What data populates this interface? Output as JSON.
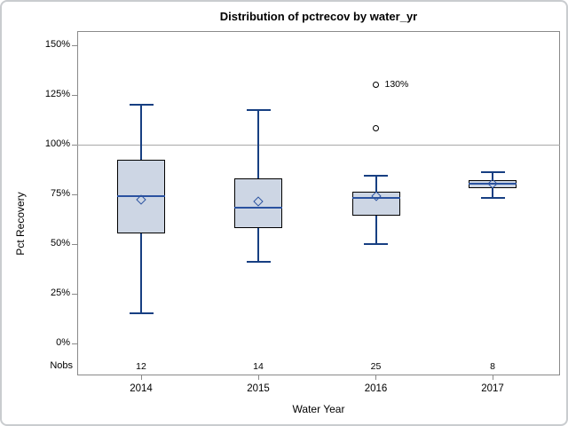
{
  "chart_data": {
    "type": "boxplot",
    "title": "Distribution of pctrecov by water_yr",
    "xlabel": "Water Year",
    "ylabel": "Pct Recovery",
    "ylim": [
      0,
      150
    ],
    "ytick_values": [
      0,
      25,
      50,
      75,
      100,
      125,
      150
    ],
    "ytick_labels": [
      "0%",
      "25%",
      "50%",
      "75%",
      "100%",
      "125%",
      "150%"
    ],
    "reference_line": 100,
    "grid": "off",
    "legend": "none",
    "nobs_header": "Nobs",
    "categories": [
      "2014",
      "2015",
      "2016",
      "2017"
    ],
    "groups": [
      {
        "category": "2014",
        "nobs": "12",
        "whisker_low": 15,
        "q1": 55,
        "median": 74,
        "mean": 72,
        "q3": 92,
        "whisker_high": 120,
        "outliers": []
      },
      {
        "category": "2015",
        "nobs": "14",
        "whisker_low": 41,
        "q1": 58,
        "median": 68,
        "mean": 71,
        "q3": 83,
        "whisker_high": 117,
        "outliers": []
      },
      {
        "category": "2016",
        "nobs": "25",
        "whisker_low": 50,
        "q1": 64,
        "median": 73,
        "mean": 74,
        "q3": 76,
        "whisker_high": 84,
        "outliers": [
          {
            "value": 108,
            "label": ""
          },
          {
            "value": 130,
            "label": "130%"
          }
        ]
      },
      {
        "category": "2017",
        "nobs": "8",
        "whisker_low": 73,
        "q1": 78,
        "median": 80,
        "mean": 80,
        "q3": 82,
        "whisker_high": 86,
        "outliers": []
      }
    ],
    "colors": {
      "box_fill": "#cdd6e4",
      "box_border": "#000000",
      "whisker_line": "#173f82",
      "median_line": "#2a52a0",
      "mean_marker": "#2a52a0",
      "reference_line": "#a9a9a9",
      "axis": "#8a8a8a",
      "text": "#000000"
    }
  }
}
